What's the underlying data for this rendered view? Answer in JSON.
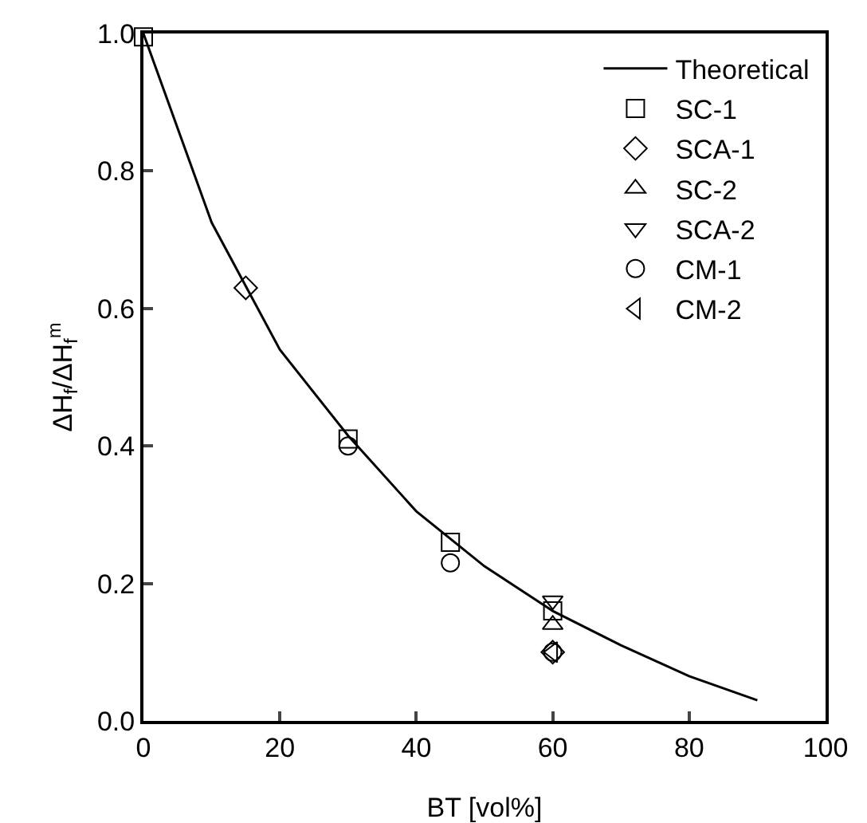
{
  "chart_data": {
    "type": "scatter",
    "xlabel": "BT [vol%]",
    "ylabel": "ΔH$_{f}$/ΔH$_{f}$$^{m}$",
    "xlim": [
      0,
      100
    ],
    "ylim": [
      0,
      1.0
    ],
    "xticks": [
      0,
      20,
      40,
      60,
      80,
      100
    ],
    "yticks": [
      {
        "value": 0,
        "label": "0.0"
      },
      0.2,
      0.4,
      0.6,
      0.8,
      {
        "value": 1,
        "label": "1.0"
      }
    ],
    "grid": false,
    "legend": "top right",
    "series": [
      {
        "name": "Theoretical",
        "type": "line",
        "color": "#000000",
        "marker": "none",
        "line_style": "solid",
        "x": [
          0,
          10,
          20,
          30,
          40,
          50,
          60,
          70,
          80,
          90
        ],
        "values": [
          1.0,
          0.725,
          0.54,
          0.415,
          0.305,
          0.225,
          0.16,
          0.11,
          0.065,
          0.03
        ]
      },
      {
        "name": "SC-1",
        "color": "#000000",
        "marker": "square",
        "x": [
          0,
          30,
          45,
          60
        ],
        "values": [
          0.995,
          0.41,
          0.26,
          0.16
        ]
      },
      {
        "name": "SCA-1",
        "color": "#000000",
        "marker": "diamond",
        "x": [
          15,
          60
        ],
        "values": [
          0.63,
          0.1
        ]
      },
      {
        "name": "SC-2",
        "color": "#000000",
        "marker": "triangle",
        "x": [
          60
        ],
        "values": [
          0.14
        ]
      },
      {
        "name": "SCA-2",
        "color": "#000000",
        "marker": "triangle-down",
        "x": [
          60
        ],
        "values": [
          0.175
        ]
      },
      {
        "name": "CM-1",
        "color": "#000000",
        "marker": "circle",
        "x": [
          30,
          45,
          60
        ],
        "values": [
          0.4,
          0.23,
          0.1
        ]
      },
      {
        "name": "CM-2",
        "color": "#000000",
        "marker": "triangle-left",
        "x": [
          60
        ],
        "values": [
          0.1
        ]
      }
    ]
  }
}
